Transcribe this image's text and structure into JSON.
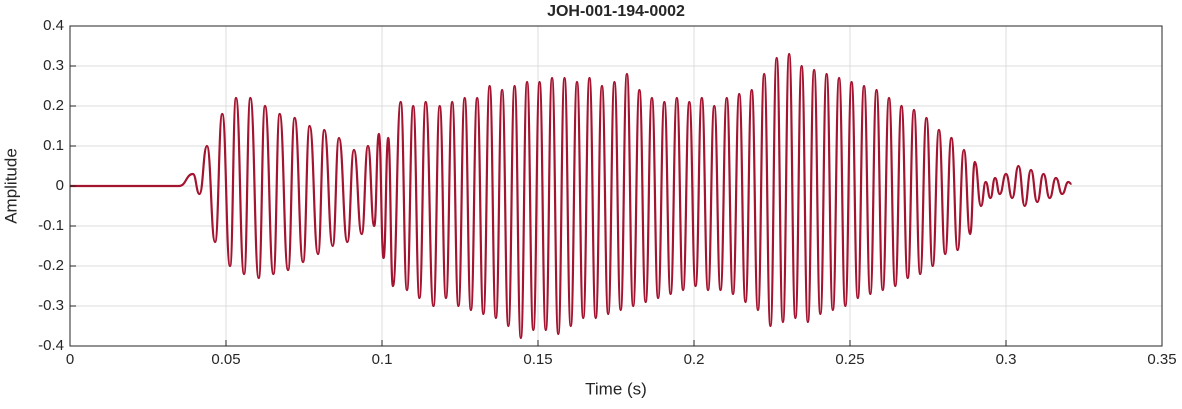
{
  "chart_data": {
    "type": "line",
    "title": "JOH-001-194-0002",
    "xlabel": "Time (s)",
    "ylabel": "Amplitude",
    "xlim": [
      0,
      0.35
    ],
    "xticks": [
      0,
      0.05,
      0.1,
      0.15,
      0.2,
      0.25,
      0.3,
      0.35
    ],
    "ylim": [
      -0.4,
      0.4
    ],
    "yticks": [
      -0.4,
      -0.3,
      -0.2,
      -0.1,
      0,
      0.1,
      0.2,
      0.3,
      0.4
    ],
    "grid": true,
    "series": [
      {
        "color": "#a2142f",
        "x": [
          0,
          0.035,
          0.0394,
          0.0415,
          0.0439,
          0.0465,
          0.0488,
          0.0513,
          0.0532,
          0.0558,
          0.0578,
          0.0605,
          0.0625,
          0.0652,
          0.0672,
          0.0699,
          0.072,
          0.0747,
          0.0768,
          0.0795,
          0.0815,
          0.0842,
          0.0862,
          0.0889,
          0.091,
          0.0935,
          0.0955,
          0.0975,
          0.099,
          0.1005,
          0.102,
          0.1035,
          0.106,
          0.108,
          0.11,
          0.112,
          0.114,
          0.1165,
          0.1185,
          0.1205,
          0.1225,
          0.1245,
          0.1265,
          0.1285,
          0.1305,
          0.1325,
          0.1345,
          0.1365,
          0.1385,
          0.1405,
          0.1425,
          0.1445,
          0.1465,
          0.1485,
          0.1505,
          0.1525,
          0.1545,
          0.1565,
          0.1585,
          0.1605,
          0.1625,
          0.1645,
          0.1665,
          0.1685,
          0.1705,
          0.1725,
          0.1745,
          0.1765,
          0.1785,
          0.1805,
          0.1825,
          0.1845,
          0.1865,
          0.1885,
          0.1905,
          0.1925,
          0.1945,
          0.1965,
          0.1985,
          0.2005,
          0.2025,
          0.2045,
          0.2065,
          0.2085,
          0.2105,
          0.2125,
          0.2145,
          0.2165,
          0.2185,
          0.2205,
          0.2225,
          0.2245,
          0.2265,
          0.2285,
          0.2305,
          0.2325,
          0.2345,
          0.2365,
          0.2385,
          0.2405,
          0.2425,
          0.2445,
          0.2465,
          0.2485,
          0.2505,
          0.2525,
          0.2545,
          0.2565,
          0.2585,
          0.2605,
          0.2625,
          0.2645,
          0.2665,
          0.2685,
          0.2705,
          0.2725,
          0.2745,
          0.2765,
          0.2785,
          0.2805,
          0.2825,
          0.2845,
          0.2865,
          0.2885,
          0.29,
          0.292,
          0.2935,
          0.295,
          0.2965,
          0.298,
          0.3,
          0.302,
          0.304,
          0.306,
          0.308,
          0.31,
          0.312,
          0.314,
          0.316,
          0.318,
          0.32,
          0.321
        ],
        "values": [
          0,
          0,
          0.03,
          -0.02,
          0.1,
          -0.14,
          0.18,
          -0.2,
          0.22,
          -0.22,
          0.22,
          -0.23,
          0.2,
          -0.22,
          0.18,
          -0.21,
          0.17,
          -0.19,
          0.15,
          -0.17,
          0.14,
          -0.15,
          0.12,
          -0.14,
          0.09,
          -0.12,
          0.1,
          -0.1,
          0.13,
          -0.18,
          0.12,
          -0.25,
          0.21,
          -0.26,
          0.2,
          -0.28,
          0.21,
          -0.3,
          0.2,
          -0.28,
          0.21,
          -0.3,
          0.22,
          -0.31,
          0.22,
          -0.32,
          0.25,
          -0.33,
          0.24,
          -0.35,
          0.25,
          -0.38,
          0.26,
          -0.36,
          0.26,
          -0.36,
          0.27,
          -0.37,
          0.27,
          -0.35,
          0.26,
          -0.33,
          0.27,
          -0.33,
          0.25,
          -0.32,
          0.26,
          -0.31,
          0.28,
          -0.3,
          0.24,
          -0.29,
          0.22,
          -0.28,
          0.21,
          -0.27,
          0.22,
          -0.26,
          0.21,
          -0.25,
          0.22,
          -0.26,
          0.2,
          -0.26,
          0.22,
          -0.27,
          0.23,
          -0.29,
          0.24,
          -0.31,
          0.28,
          -0.35,
          0.32,
          -0.34,
          0.33,
          -0.33,
          0.3,
          -0.34,
          0.29,
          -0.32,
          0.28,
          -0.31,
          0.27,
          -0.3,
          0.26,
          -0.28,
          0.25,
          -0.27,
          0.24,
          -0.26,
          0.22,
          -0.25,
          0.2,
          -0.23,
          0.19,
          -0.22,
          0.17,
          -0.2,
          0.14,
          -0.17,
          0.12,
          -0.16,
          0.09,
          -0.12,
          0.06,
          -0.05,
          0.01,
          -0.03,
          0.02,
          -0.02,
          0.03,
          -0.03,
          0.05,
          -0.05,
          0.04,
          -0.04,
          0.03,
          -0.03,
          0.02,
          -0.02,
          0.01,
          0.005
        ]
      }
    ]
  }
}
